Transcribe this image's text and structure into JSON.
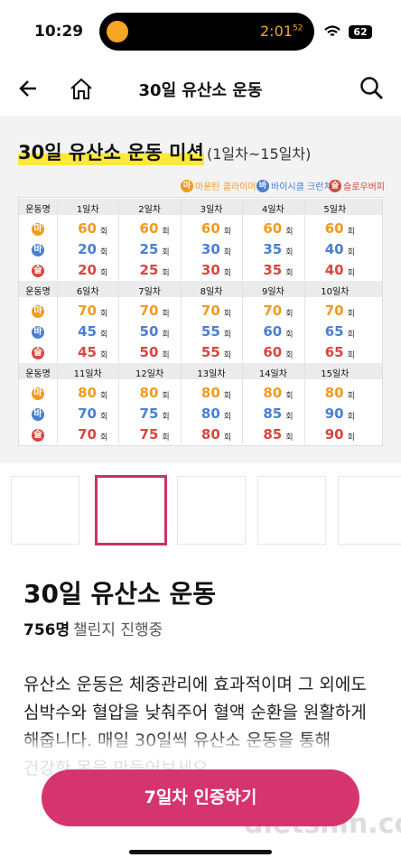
{
  "status": {
    "time": "10:29",
    "timer": "2:01",
    "timer_seconds": "52",
    "battery": "62"
  },
  "header": {
    "title": "30일 유산소 운동"
  },
  "mission_image": {
    "title": "30일 유산소 운동 미션",
    "subtitle": "(1일차~15일차)",
    "legend": [
      {
        "badge": "마",
        "name": "마운틴 클라이머",
        "color": "#f39a1e"
      },
      {
        "badge": "바",
        "name": "바이시클 크런치",
        "color": "#4a7fd1"
      },
      {
        "badge": "슬",
        "name": "슬로우버피",
        "color": "#d9463f"
      }
    ],
    "column_header": "운동명",
    "unit": "회",
    "days": [
      {
        "label": "1일차",
        "values": [
          60,
          20,
          20
        ]
      },
      {
        "label": "2일차",
        "values": [
          60,
          25,
          25
        ]
      },
      {
        "label": "3일차",
        "values": [
          60,
          30,
          30
        ]
      },
      {
        "label": "4일차",
        "values": [
          60,
          35,
          35
        ]
      },
      {
        "label": "5일차",
        "values": [
          60,
          40,
          40
        ]
      },
      {
        "label": "6일차",
        "values": [
          70,
          45,
          45
        ]
      },
      {
        "label": "7일차",
        "values": [
          70,
          50,
          50
        ]
      },
      {
        "label": "8일차",
        "values": [
          70,
          55,
          55
        ]
      },
      {
        "label": "9일차",
        "values": [
          70,
          60,
          60
        ]
      },
      {
        "label": "10일차",
        "values": [
          70,
          65,
          65
        ]
      },
      {
        "label": "11일차",
        "values": [
          80,
          70,
          70
        ]
      },
      {
        "label": "12일차",
        "values": [
          80,
          75,
          75
        ]
      },
      {
        "label": "13일차",
        "values": [
          80,
          80,
          80
        ]
      },
      {
        "label": "14일차",
        "values": [
          80,
          85,
          85
        ]
      },
      {
        "label": "15일차",
        "values": [
          80,
          90,
          90
        ]
      }
    ]
  },
  "challenge": {
    "title": "30일 유산소 운동",
    "participants": "756명",
    "status": "챌린지 진행중",
    "description": "유산소 운동은 체중관리에 효과적이며 그 외에도 심박수와 혈압을 낮춰주어 혈액 순환을 원활하게 해줍니다. 매일 30일씩 유산소 운동을 통해 건강한 몸을 만들어보세요."
  },
  "button": {
    "label": "7일차 인증하기"
  },
  "watermark": "dietshin.com"
}
